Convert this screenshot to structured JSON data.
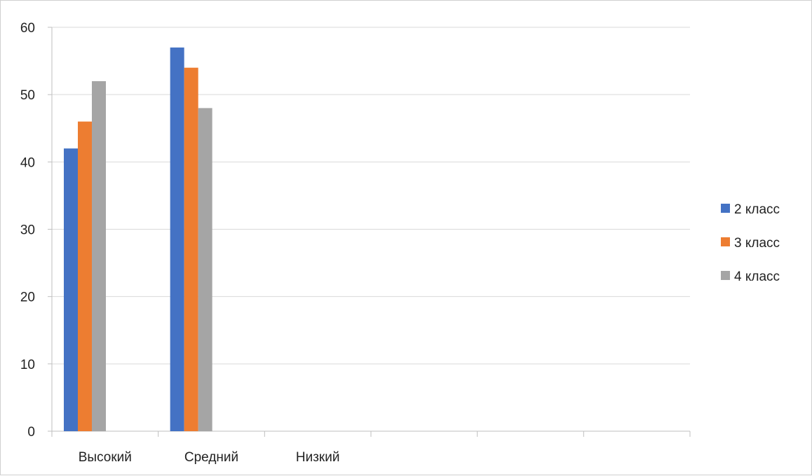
{
  "chart_data": {
    "type": "bar",
    "categories": [
      "Высокий",
      "Средний",
      "Низкий",
      "",
      "",
      ""
    ],
    "series": [
      {
        "name": "2 класс",
        "color": "#4472C4",
        "values": [
          42,
          57,
          0,
          0,
          0,
          0
        ]
      },
      {
        "name": "3 класс",
        "color": "#ED7D31",
        "values": [
          46,
          54,
          0,
          0,
          0,
          0
        ]
      },
      {
        "name": "4 класс",
        "color": "#A5A5A5",
        "values": [
          52,
          48,
          0,
          0,
          0,
          0
        ]
      }
    ],
    "y_ticks": [
      0,
      10,
      20,
      30,
      40,
      50,
      60
    ],
    "ylim": [
      0,
      60
    ],
    "grid": true,
    "legend_position": "right"
  }
}
